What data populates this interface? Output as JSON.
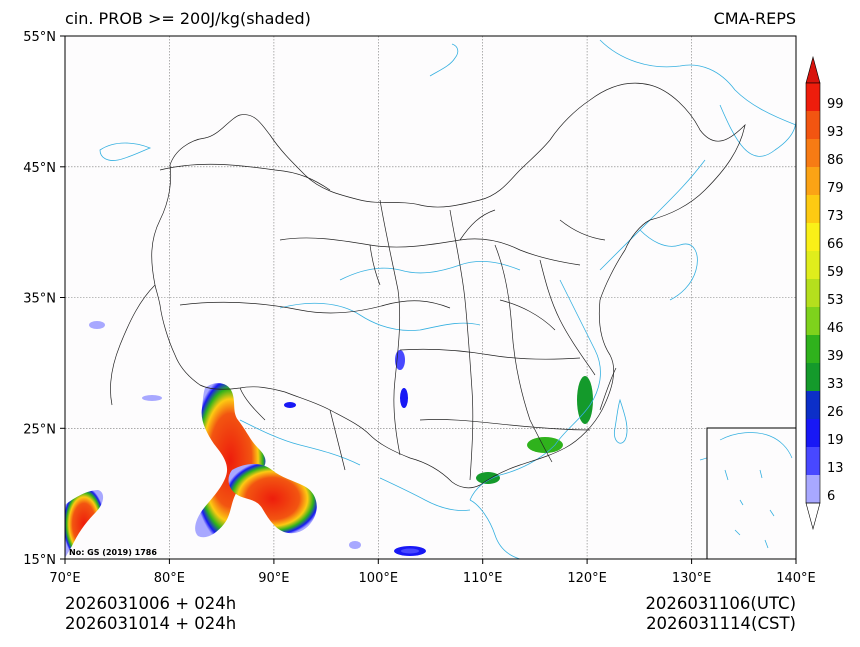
{
  "header": {
    "title_left": "cin. PROB >= 200J/kg(shaded)",
    "title_right": "CMA-REPS"
  },
  "axes": {
    "lon_labels": [
      "70°E",
      "80°E",
      "90°E",
      "100°E",
      "110°E",
      "120°E",
      "130°E",
      "140°E"
    ],
    "lat_labels": [
      "55°N",
      "45°N",
      "35°N",
      "25°N",
      "15°N"
    ],
    "lon_range": [
      70,
      140
    ],
    "lat_range": [
      15,
      55
    ]
  },
  "map": {
    "map_number": "No: GS (2019) 1786"
  },
  "colorbar": {
    "labels": [
      "99",
      "93",
      "86",
      "79",
      "73",
      "66",
      "59",
      "53",
      "46",
      "39",
      "33",
      "26",
      "19",
      "13",
      "6"
    ],
    "colors": [
      "#ee1d0c",
      "#f25511",
      "#f77b14",
      "#fba315",
      "#fdca12",
      "#faf018",
      "#e0ed1c",
      "#b5df1d",
      "#7ed21c",
      "#2fb21c",
      "#149a2b",
      "#0c2fc8",
      "#1818f5",
      "#4848ff",
      "#a8a8ff"
    ],
    "over_color": "#d8140d",
    "under_color": "#ffffff"
  },
  "footer": {
    "init_utc": "2026031006  +  024h",
    "init_cst": "2026031014  +  024h",
    "valid_utc": "2026031106(UTC)",
    "valid_cst": "2026031114(CST)"
  }
}
